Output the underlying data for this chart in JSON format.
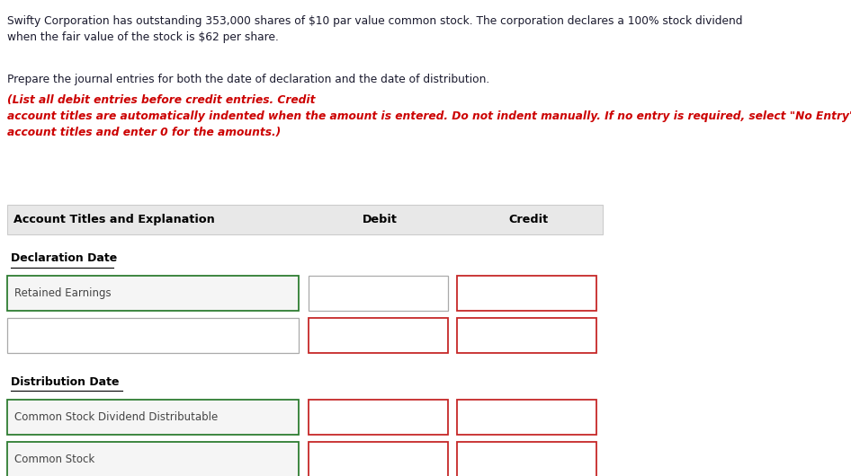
{
  "bg_color": "#ffffff",
  "para1_text": "Swifty Corporation has outstanding 353,000 shares of $10 par value common stock. The corporation declares a 100% stock dividend\nwhen the fair value of the stock is $62 per share.",
  "para2_black": "Prepare the journal entries for both the date of declaration and the date of distribution.",
  "para2_red": "(List all debit entries before credit entries. Credit\naccount titles are automatically indented when the amount is entered. Do not indent manually. If no entry is required, select \"No Entry\" for the\naccount titles and enter 0 for the amounts.)",
  "header_col1": "Account Titles and Explanation",
  "header_col2": "Debit",
  "header_col3": "Credit",
  "section1_label": "Declaration Date",
  "section2_label": "Distribution Date",
  "row1_label": "Retained Earnings",
  "row2_label": "",
  "row3_label": "Common Stock Dividend Distributable",
  "row4_label": "Common Stock",
  "green_border": "#2e7d32",
  "red_border": "#c62828",
  "gray_border": "#aaaaaa",
  "header_bg": "#e8e8e8",
  "header_edge": "#cccccc",
  "row_bg": "#f5f5f5"
}
